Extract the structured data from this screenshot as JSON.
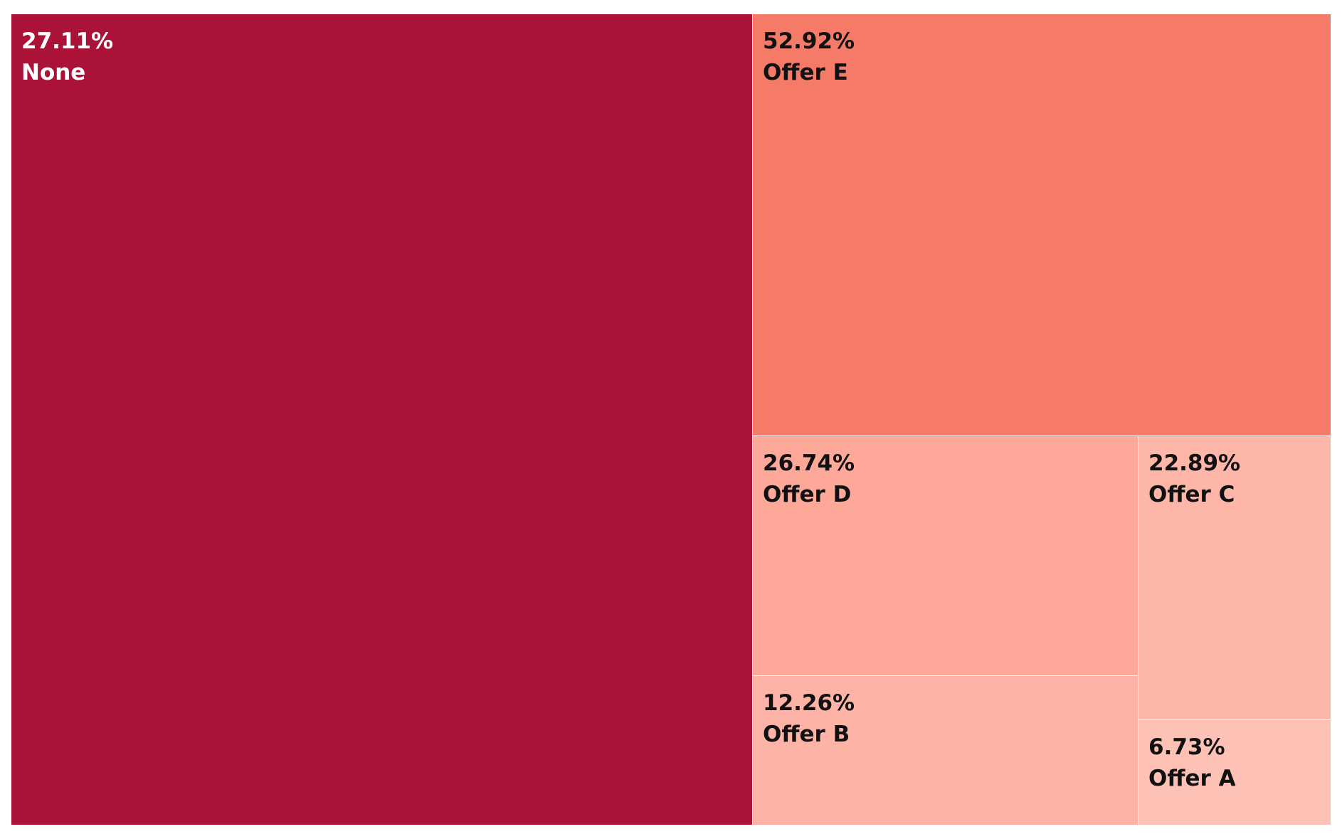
{
  "chart_data": {
    "type": "treemap",
    "title": "",
    "items": [
      {
        "label": "None",
        "value_label": "27.11%",
        "value": 27.11,
        "color": "#ab1237",
        "text_color": "#ffffff"
      },
      {
        "label": "Offer E",
        "value_label": "52.92%",
        "value": 52.92,
        "color": "#f57a68",
        "text_color": "#111111"
      },
      {
        "label": "Offer D",
        "value_label": "26.74%",
        "value": 26.74,
        "color": "#fda898",
        "text_color": "#111111"
      },
      {
        "label": "Offer B",
        "value_label": "12.26%",
        "value": 12.26,
        "color": "#fdb3a5",
        "text_color": "#111111"
      },
      {
        "label": "Offer C",
        "value_label": "22.89%",
        "value": 22.89,
        "color": "#fdb6a8",
        "text_color": "#111111"
      },
      {
        "label": "Offer A",
        "value_label": "6.73%",
        "value": 6.73,
        "color": "#fdc1b5",
        "text_color": "#111111"
      }
    ]
  }
}
